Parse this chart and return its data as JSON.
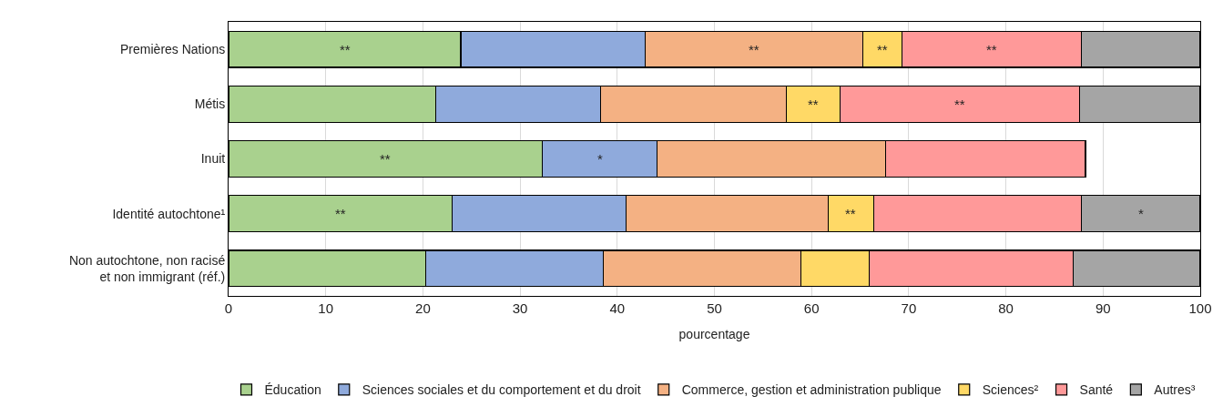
{
  "chart_data": {
    "type": "bar",
    "orientation": "horizontal",
    "stacked": true,
    "categories": [
      "Premières Nations",
      "Métis",
      "Inuit",
      "Identité autochtone¹",
      "Non autochtone, non racisé\net non immigrant (réf.)"
    ],
    "series": [
      {
        "name": "Éducation",
        "color": "#a9d18e",
        "values": [
          23.9,
          21.3,
          32.3,
          23.0,
          20.3
        ],
        "value_labels": [
          "**",
          null,
          "**",
          "**",
          null
        ]
      },
      {
        "name": "Sciences sociales et du comportement et du droit",
        "color": "#8faadc",
        "values": [
          19.0,
          17.0,
          11.8,
          17.9,
          18.3
        ],
        "value_labels": [
          null,
          null,
          "*",
          null,
          null
        ]
      },
      {
        "name": "Commerce, gestion et administration publique",
        "color": "#f4b183",
        "values": [
          22.4,
          19.1,
          23.5,
          20.8,
          20.3
        ],
        "value_labels": [
          "**",
          null,
          null,
          null,
          null
        ]
      },
      {
        "name": "Sciences²",
        "color": "#ffd966",
        "values": [
          4.0,
          5.5,
          null,
          4.7,
          7.0
        ],
        "value_labels": [
          "**",
          "**",
          null,
          "**",
          null
        ]
      },
      {
        "name": "Santé",
        "color": "#ff9999",
        "values": [
          18.5,
          24.7,
          20.6,
          21.4,
          21.0
        ],
        "value_labels": [
          "**",
          "**",
          null,
          null,
          null
        ]
      },
      {
        "name": "Autres³",
        "color": "#a5a5a5",
        "values": [
          12.2,
          12.4,
          null,
          12.2,
          13.1
        ],
        "value_labels": [
          null,
          null,
          null,
          "*",
          null
        ]
      }
    ],
    "xlabel": "pourcentage",
    "xlim": [
      0,
      100
    ],
    "xticks": [
      0,
      10,
      20,
      30,
      40,
      50,
      60,
      70,
      80,
      90,
      100
    ],
    "grid": "x",
    "legend": "bottom"
  }
}
